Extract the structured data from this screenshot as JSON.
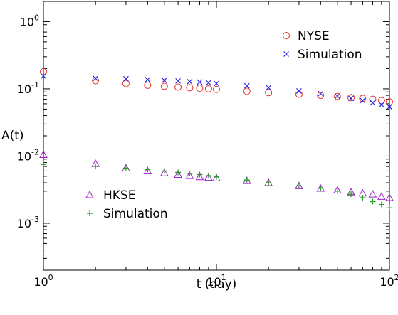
{
  "chart_data": {
    "type": "scatter",
    "title": "",
    "xlabel": "t (day)",
    "ylabel": "A(t)",
    "x_scale": "log",
    "y_scale": "log",
    "xlim": [
      1,
      100
    ],
    "ylim": [
      0.0002,
      2
    ],
    "grid": false,
    "x_ticks": [
      {
        "base": "10",
        "exp": "0",
        "value": 1
      },
      {
        "base": "10",
        "exp": "1",
        "value": 10
      },
      {
        "base": "10",
        "exp": "2",
        "value": 100
      }
    ],
    "y_ticks": [
      {
        "base": "10",
        "exp": "0",
        "value": 1
      },
      {
        "base": "10",
        "exp": "-1",
        "value": 0.1
      },
      {
        "base": "10",
        "exp": "-2",
        "value": 0.01
      },
      {
        "base": "10",
        "exp": "-3",
        "value": 0.001
      }
    ],
    "legends": [
      {
        "position": "top-right",
        "entries": [
          {
            "label": "NYSE",
            "series": 0
          },
          {
            "label": "Simulation",
            "series": 1
          }
        ]
      },
      {
        "position": "bottom-left",
        "entries": [
          {
            "label": "HKSE",
            "series": 2
          },
          {
            "label": "Simulation",
            "series": 3
          }
        ]
      }
    ],
    "series": [
      {
        "name": "NYSE",
        "marker": "circle",
        "color": "#e8312b",
        "points": [
          [
            1,
            0.18
          ],
          [
            2,
            0.132
          ],
          [
            3,
            0.12
          ],
          [
            4,
            0.113
          ],
          [
            5,
            0.109
          ],
          [
            6,
            0.106
          ],
          [
            7,
            0.104
          ],
          [
            8,
            0.102
          ],
          [
            9,
            0.1
          ],
          [
            10,
            0.098
          ],
          [
            15,
            0.092
          ],
          [
            20,
            0.088
          ],
          [
            30,
            0.083
          ],
          [
            40,
            0.08
          ],
          [
            50,
            0.077
          ],
          [
            60,
            0.074
          ],
          [
            70,
            0.072
          ],
          [
            80,
            0.07
          ],
          [
            90,
            0.067
          ],
          [
            100,
            0.064
          ]
        ]
      },
      {
        "name": "Simulation",
        "marker": "x",
        "color": "#2a2ae0",
        "points": [
          [
            1,
            0.155
          ],
          [
            2,
            0.143
          ],
          [
            3,
            0.141
          ],
          [
            4,
            0.137
          ],
          [
            5,
            0.134
          ],
          [
            6,
            0.131
          ],
          [
            7,
            0.128
          ],
          [
            8,
            0.126
          ],
          [
            9,
            0.123
          ],
          [
            10,
            0.12
          ],
          [
            15,
            0.111
          ],
          [
            20,
            0.104
          ],
          [
            30,
            0.093
          ],
          [
            40,
            0.085
          ],
          [
            50,
            0.078
          ],
          [
            60,
            0.072
          ],
          [
            70,
            0.067
          ],
          [
            80,
            0.062
          ],
          [
            90,
            0.058
          ],
          [
            100,
            0.054
          ]
        ]
      },
      {
        "name": "HKSE",
        "marker": "triangle",
        "color": "#a020c8",
        "points": [
          [
            1,
            0.0105
          ],
          [
            2,
            0.0077
          ],
          [
            3,
            0.0066
          ],
          [
            4,
            0.006
          ],
          [
            5,
            0.0056
          ],
          [
            6,
            0.0053
          ],
          [
            7,
            0.0051
          ],
          [
            8,
            0.0049
          ],
          [
            9,
            0.0048
          ],
          [
            10,
            0.0047
          ],
          [
            15,
            0.0043
          ],
          [
            20,
            0.004
          ],
          [
            30,
            0.0036
          ],
          [
            40,
            0.0033
          ],
          [
            50,
            0.0031
          ],
          [
            60,
            0.0029
          ],
          [
            70,
            0.0028
          ],
          [
            80,
            0.0027
          ],
          [
            90,
            0.0025
          ],
          [
            100,
            0.0024
          ]
        ]
      },
      {
        "name": "Simulation",
        "marker": "plus",
        "color": "#1e9e1e",
        "points": [
          [
            1,
            0.0075
          ],
          [
            2,
            0.007
          ],
          [
            3,
            0.0066
          ],
          [
            4,
            0.0063
          ],
          [
            5,
            0.006
          ],
          [
            6,
            0.0057
          ],
          [
            7,
            0.0055
          ],
          [
            8,
            0.0053
          ],
          [
            9,
            0.0051
          ],
          [
            10,
            0.0049
          ],
          [
            15,
            0.0044
          ],
          [
            20,
            0.004
          ],
          [
            30,
            0.0036
          ],
          [
            40,
            0.0033
          ],
          [
            50,
            0.003
          ],
          [
            60,
            0.0027
          ],
          [
            70,
            0.0024
          ],
          [
            80,
            0.0021
          ],
          [
            90,
            0.0019
          ],
          [
            100,
            0.0017
          ]
        ]
      }
    ]
  }
}
